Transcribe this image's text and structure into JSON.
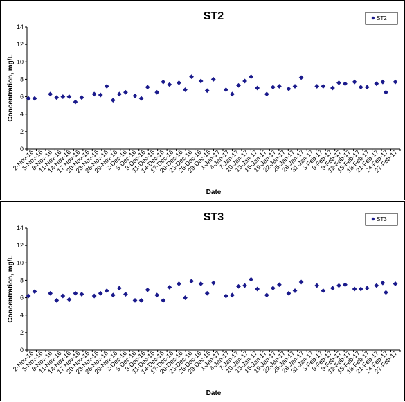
{
  "chart_data": [
    {
      "type": "scatter",
      "title": "ST2",
      "xlabel": "Date",
      "ylabel": "Concentration, mg/L",
      "ylim": [
        0,
        14
      ],
      "yticks": [
        "0",
        "2",
        "4",
        "6",
        "8",
        "10",
        "12",
        "14"
      ],
      "legend_position": "top-right",
      "marker_color": "#1a1a8c",
      "date_range": [
        "2016-11-02",
        "2017-02-27"
      ],
      "xtick_labels": [
        "2-Nov-16",
        "5-Nov-16",
        "8-Nov-16",
        "11-Nov-16",
        "14-Nov-16",
        "17-Nov-16",
        "20-Nov-16",
        "23-Nov-16",
        "26-Nov-16",
        "29-Nov-16",
        "2-Dec-16",
        "5-Dec-16",
        "8-Dec-16",
        "11-Dec-16",
        "14-Dec-16",
        "17-Dec-16",
        "20-Dec-16",
        "23-Dec-16",
        "26-Dec-16",
        "29-Dec-16",
        "1-Jan-17",
        "4-Jan-17",
        "7-Jan-17",
        "10-Jan-17",
        "13-Jan-17",
        "16-Jan-17",
        "19-Jan-17",
        "22-Jan-17",
        "25-Jan-17",
        "28-Jan-17",
        "31-Jan-17",
        "3-Feb-17",
        "6-Feb-17",
        "9-Feb-17",
        "12-Feb-17",
        "15-Feb-17",
        "18-Feb-17",
        "21-Feb-17",
        "24-Feb-17",
        "27-Feb-17"
      ],
      "series": [
        {
          "name": "ST2",
          "points": [
            {
              "x": "2016-11-02",
              "y": 5.8
            },
            {
              "x": "2016-11-04",
              "y": 5.8
            },
            {
              "x": "2016-11-09",
              "y": 6.3
            },
            {
              "x": "2016-11-11",
              "y": 5.9
            },
            {
              "x": "2016-11-13",
              "y": 6.0
            },
            {
              "x": "2016-11-15",
              "y": 6.0
            },
            {
              "x": "2016-11-17",
              "y": 5.4
            },
            {
              "x": "2016-11-19",
              "y": 5.9
            },
            {
              "x": "2016-11-23",
              "y": 6.3
            },
            {
              "x": "2016-11-25",
              "y": 6.2
            },
            {
              "x": "2016-11-27",
              "y": 7.2
            },
            {
              "x": "2016-11-29",
              "y": 5.6
            },
            {
              "x": "2016-12-01",
              "y": 6.3
            },
            {
              "x": "2016-12-03",
              "y": 6.5
            },
            {
              "x": "2016-12-06",
              "y": 6.1
            },
            {
              "x": "2016-12-08",
              "y": 5.8
            },
            {
              "x": "2016-12-10",
              "y": 7.1
            },
            {
              "x": "2016-12-13",
              "y": 6.5
            },
            {
              "x": "2016-12-15",
              "y": 7.7
            },
            {
              "x": "2016-12-17",
              "y": 7.4
            },
            {
              "x": "2016-12-20",
              "y": 7.6
            },
            {
              "x": "2016-12-22",
              "y": 6.8
            },
            {
              "x": "2016-12-24",
              "y": 8.3
            },
            {
              "x": "2016-12-27",
              "y": 7.8
            },
            {
              "x": "2016-12-29",
              "y": 6.7
            },
            {
              "x": "2016-12-31",
              "y": 8.0
            },
            {
              "x": "2017-01-04",
              "y": 6.8
            },
            {
              "x": "2017-01-06",
              "y": 6.3
            },
            {
              "x": "2017-01-08",
              "y": 7.3
            },
            {
              "x": "2017-01-10",
              "y": 7.8
            },
            {
              "x": "2017-01-12",
              "y": 8.3
            },
            {
              "x": "2017-01-14",
              "y": 7.0
            },
            {
              "x": "2017-01-17",
              "y": 6.3
            },
            {
              "x": "2017-01-19",
              "y": 7.1
            },
            {
              "x": "2017-01-21",
              "y": 7.2
            },
            {
              "x": "2017-01-24",
              "y": 6.9
            },
            {
              "x": "2017-01-26",
              "y": 7.2
            },
            {
              "x": "2017-01-28",
              "y": 8.2
            },
            {
              "x": "2017-02-02",
              "y": 7.2
            },
            {
              "x": "2017-02-04",
              "y": 7.2
            },
            {
              "x": "2017-02-07",
              "y": 7.0
            },
            {
              "x": "2017-02-09",
              "y": 7.6
            },
            {
              "x": "2017-02-11",
              "y": 7.5
            },
            {
              "x": "2017-02-14",
              "y": 7.7
            },
            {
              "x": "2017-02-16",
              "y": 7.1
            },
            {
              "x": "2017-02-18",
              "y": 7.1
            },
            {
              "x": "2017-02-21",
              "y": 7.5
            },
            {
              "x": "2017-02-23",
              "y": 7.7
            },
            {
              "x": "2017-02-24",
              "y": 6.5
            },
            {
              "x": "2017-02-27",
              "y": 7.7
            }
          ]
        }
      ]
    },
    {
      "type": "scatter",
      "title": "ST3",
      "xlabel": "Date",
      "ylabel": "Concentration, mg/L",
      "ylim": [
        0,
        14
      ],
      "yticks": [
        "0",
        "2",
        "4",
        "6",
        "8",
        "10",
        "12",
        "14"
      ],
      "legend_position": "top-right",
      "marker_color": "#1a1a8c",
      "date_range": [
        "2016-11-02",
        "2017-02-27"
      ],
      "xtick_labels": [
        "2-Nov-16",
        "5-Nov-16",
        "8-Nov-16",
        "11-Nov-16",
        "14-Nov-16",
        "17-Nov-16",
        "20-Nov-16",
        "23-Nov-16",
        "26-Nov-16",
        "29-Nov-16",
        "2-Dec-16",
        "5-Dec-16",
        "8-Dec-16",
        "11-Dec-16",
        "14-Dec-16",
        "17-Dec-16",
        "20-Dec-16",
        "23-Dec-16",
        "26-Dec-16",
        "29-Dec-16",
        "1-Jan-17",
        "4-Jan-17",
        "7-Jan-17",
        "10-Jan-17",
        "13-Jan-17",
        "16-Jan-17",
        "19-Jan-17",
        "22-Jan-17",
        "25-Jan-17",
        "28-Jan-17",
        "31-Jan-17",
        "3-Feb-17",
        "6-Feb-17",
        "9-Feb-17",
        "12-Feb-17",
        "15-Feb-17",
        "18-Feb-17",
        "21-Feb-17",
        "24-Feb-17",
        "27-Feb-17"
      ],
      "series": [
        {
          "name": "ST3",
          "points": [
            {
              "x": "2016-11-02",
              "y": 6.2
            },
            {
              "x": "2016-11-04",
              "y": 6.7
            },
            {
              "x": "2016-11-09",
              "y": 6.5
            },
            {
              "x": "2016-11-11",
              "y": 5.7
            },
            {
              "x": "2016-11-13",
              "y": 6.2
            },
            {
              "x": "2016-11-15",
              "y": 5.8
            },
            {
              "x": "2016-11-17",
              "y": 6.5
            },
            {
              "x": "2016-11-19",
              "y": 6.4
            },
            {
              "x": "2016-11-23",
              "y": 6.2
            },
            {
              "x": "2016-11-25",
              "y": 6.5
            },
            {
              "x": "2016-11-27",
              "y": 6.8
            },
            {
              "x": "2016-11-29",
              "y": 6.3
            },
            {
              "x": "2016-12-01",
              "y": 7.1
            },
            {
              "x": "2016-12-03",
              "y": 6.4
            },
            {
              "x": "2016-12-06",
              "y": 5.7
            },
            {
              "x": "2016-12-08",
              "y": 5.7
            },
            {
              "x": "2016-12-10",
              "y": 6.9
            },
            {
              "x": "2016-12-13",
              "y": 6.3
            },
            {
              "x": "2016-12-15",
              "y": 5.7
            },
            {
              "x": "2016-12-17",
              "y": 7.2
            },
            {
              "x": "2016-12-20",
              "y": 7.6
            },
            {
              "x": "2016-12-22",
              "y": 6.0
            },
            {
              "x": "2016-12-24",
              "y": 7.9
            },
            {
              "x": "2016-12-27",
              "y": 7.6
            },
            {
              "x": "2016-12-29",
              "y": 6.5
            },
            {
              "x": "2016-12-31",
              "y": 7.7
            },
            {
              "x": "2017-01-04",
              "y": 6.2
            },
            {
              "x": "2017-01-06",
              "y": 6.3
            },
            {
              "x": "2017-01-08",
              "y": 7.3
            },
            {
              "x": "2017-01-10",
              "y": 7.4
            },
            {
              "x": "2017-01-12",
              "y": 8.1
            },
            {
              "x": "2017-01-14",
              "y": 7.0
            },
            {
              "x": "2017-01-17",
              "y": 6.3
            },
            {
              "x": "2017-01-19",
              "y": 7.1
            },
            {
              "x": "2017-01-21",
              "y": 7.5
            },
            {
              "x": "2017-01-24",
              "y": 6.5
            },
            {
              "x": "2017-01-26",
              "y": 6.8
            },
            {
              "x": "2017-01-28",
              "y": 7.8
            },
            {
              "x": "2017-02-02",
              "y": 7.4
            },
            {
              "x": "2017-02-04",
              "y": 6.8
            },
            {
              "x": "2017-02-07",
              "y": 7.1
            },
            {
              "x": "2017-02-09",
              "y": 7.4
            },
            {
              "x": "2017-02-11",
              "y": 7.5
            },
            {
              "x": "2017-02-14",
              "y": 7.0
            },
            {
              "x": "2017-02-16",
              "y": 7.0
            },
            {
              "x": "2017-02-18",
              "y": 7.1
            },
            {
              "x": "2017-02-21",
              "y": 7.4
            },
            {
              "x": "2017-02-23",
              "y": 7.7
            },
            {
              "x": "2017-02-24",
              "y": 6.6
            },
            {
              "x": "2017-02-27",
              "y": 7.6
            }
          ]
        }
      ]
    }
  ]
}
